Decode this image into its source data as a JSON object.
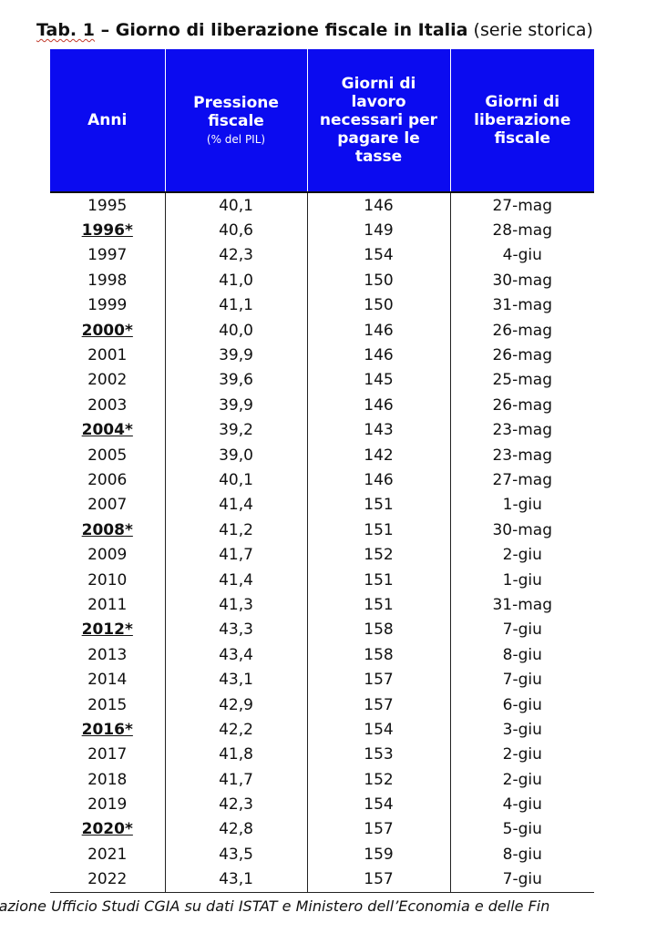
{
  "title": {
    "tab_label": "Tab. 1",
    "main": " – Giorno di liberazione fiscale in Italia",
    "suffix": " (serie storica)"
  },
  "headers": {
    "anni": "Anni",
    "pressione": "Pressione fiscale",
    "pressione_unit": "(% del PIL)",
    "giorni_lavoro": "Giorni di lavoro necessari per pagare le tasse",
    "giorni_liberazione": "Giorni di liberazione fiscale"
  },
  "rows": [
    {
      "anno": "1995",
      "pressione": "40,1",
      "giorni": "146",
      "data": "27-mag",
      "highlight": false
    },
    {
      "anno": "1996*",
      "pressione": "40,6",
      "giorni": "149",
      "data": "28-mag",
      "highlight": true
    },
    {
      "anno": "1997",
      "pressione": "42,3",
      "giorni": "154",
      "data": "4-giu",
      "highlight": false
    },
    {
      "anno": "1998",
      "pressione": "41,0",
      "giorni": "150",
      "data": "30-mag",
      "highlight": false
    },
    {
      "anno": "1999",
      "pressione": "41,1",
      "giorni": "150",
      "data": "31-mag",
      "highlight": false
    },
    {
      "anno": "2000*",
      "pressione": "40,0",
      "giorni": "146",
      "data": "26-mag",
      "highlight": true
    },
    {
      "anno": "2001",
      "pressione": "39,9",
      "giorni": "146",
      "data": "26-mag",
      "highlight": false
    },
    {
      "anno": "2002",
      "pressione": "39,6",
      "giorni": "145",
      "data": "25-mag",
      "highlight": false
    },
    {
      "anno": "2003",
      "pressione": "39,9",
      "giorni": "146",
      "data": "26-mag",
      "highlight": false
    },
    {
      "anno": "2004*",
      "pressione": "39,2",
      "giorni": "143",
      "data": "23-mag",
      "highlight": true
    },
    {
      "anno": "2005",
      "pressione": "39,0",
      "giorni": "142",
      "data": "23-mag",
      "highlight": false
    },
    {
      "anno": "2006",
      "pressione": "40,1",
      "giorni": "146",
      "data": "27-mag",
      "highlight": false
    },
    {
      "anno": "2007",
      "pressione": "41,4",
      "giorni": "151",
      "data": "1-giu",
      "highlight": false
    },
    {
      "anno": "2008*",
      "pressione": "41,2",
      "giorni": "151",
      "data": "30-mag",
      "highlight": true
    },
    {
      "anno": "2009",
      "pressione": "41,7",
      "giorni": "152",
      "data": "2-giu",
      "highlight": false
    },
    {
      "anno": "2010",
      "pressione": "41,4",
      "giorni": "151",
      "data": "1-giu",
      "highlight": false
    },
    {
      "anno": "2011",
      "pressione": "41,3",
      "giorni": "151",
      "data": "31-mag",
      "highlight": false
    },
    {
      "anno": "2012*",
      "pressione": "43,3",
      "giorni": "158",
      "data": "7-giu",
      "highlight": true
    },
    {
      "anno": "2013",
      "pressione": "43,4",
      "giorni": "158",
      "data": "8-giu",
      "highlight": false
    },
    {
      "anno": "2014",
      "pressione": "43,1",
      "giorni": "157",
      "data": "7-giu",
      "highlight": false
    },
    {
      "anno": "2015",
      "pressione": "42,9",
      "giorni": "157",
      "data": "6-giu",
      "highlight": false
    },
    {
      "anno": "2016*",
      "pressione": "42,2",
      "giorni": "154",
      "data": "3-giu",
      "highlight": true
    },
    {
      "anno": "2017",
      "pressione": "41,8",
      "giorni": "153",
      "data": "2-giu",
      "highlight": false
    },
    {
      "anno": "2018",
      "pressione": "41,7",
      "giorni": "152",
      "data": "2-giu",
      "highlight": false
    },
    {
      "anno": "2019",
      "pressione": "42,3",
      "giorni": "154",
      "data": "4-giu",
      "highlight": false
    },
    {
      "anno": "2020*",
      "pressione": "42,8",
      "giorni": "157",
      "data": "5-giu",
      "highlight": true
    },
    {
      "anno": "2021",
      "pressione": "43,5",
      "giorni": "159",
      "data": "8-giu",
      "highlight": false
    },
    {
      "anno": "2022",
      "pressione": "43,1",
      "giorni": "157",
      "data": "7-giu",
      "highlight": false
    }
  ],
  "footer": "razione Ufficio Studi CGIA su dati ISTAT e Ministero dell’Economia e delle Fin",
  "colors": {
    "header_bg": "#0b0bf0",
    "header_text": "#ffffff"
  }
}
